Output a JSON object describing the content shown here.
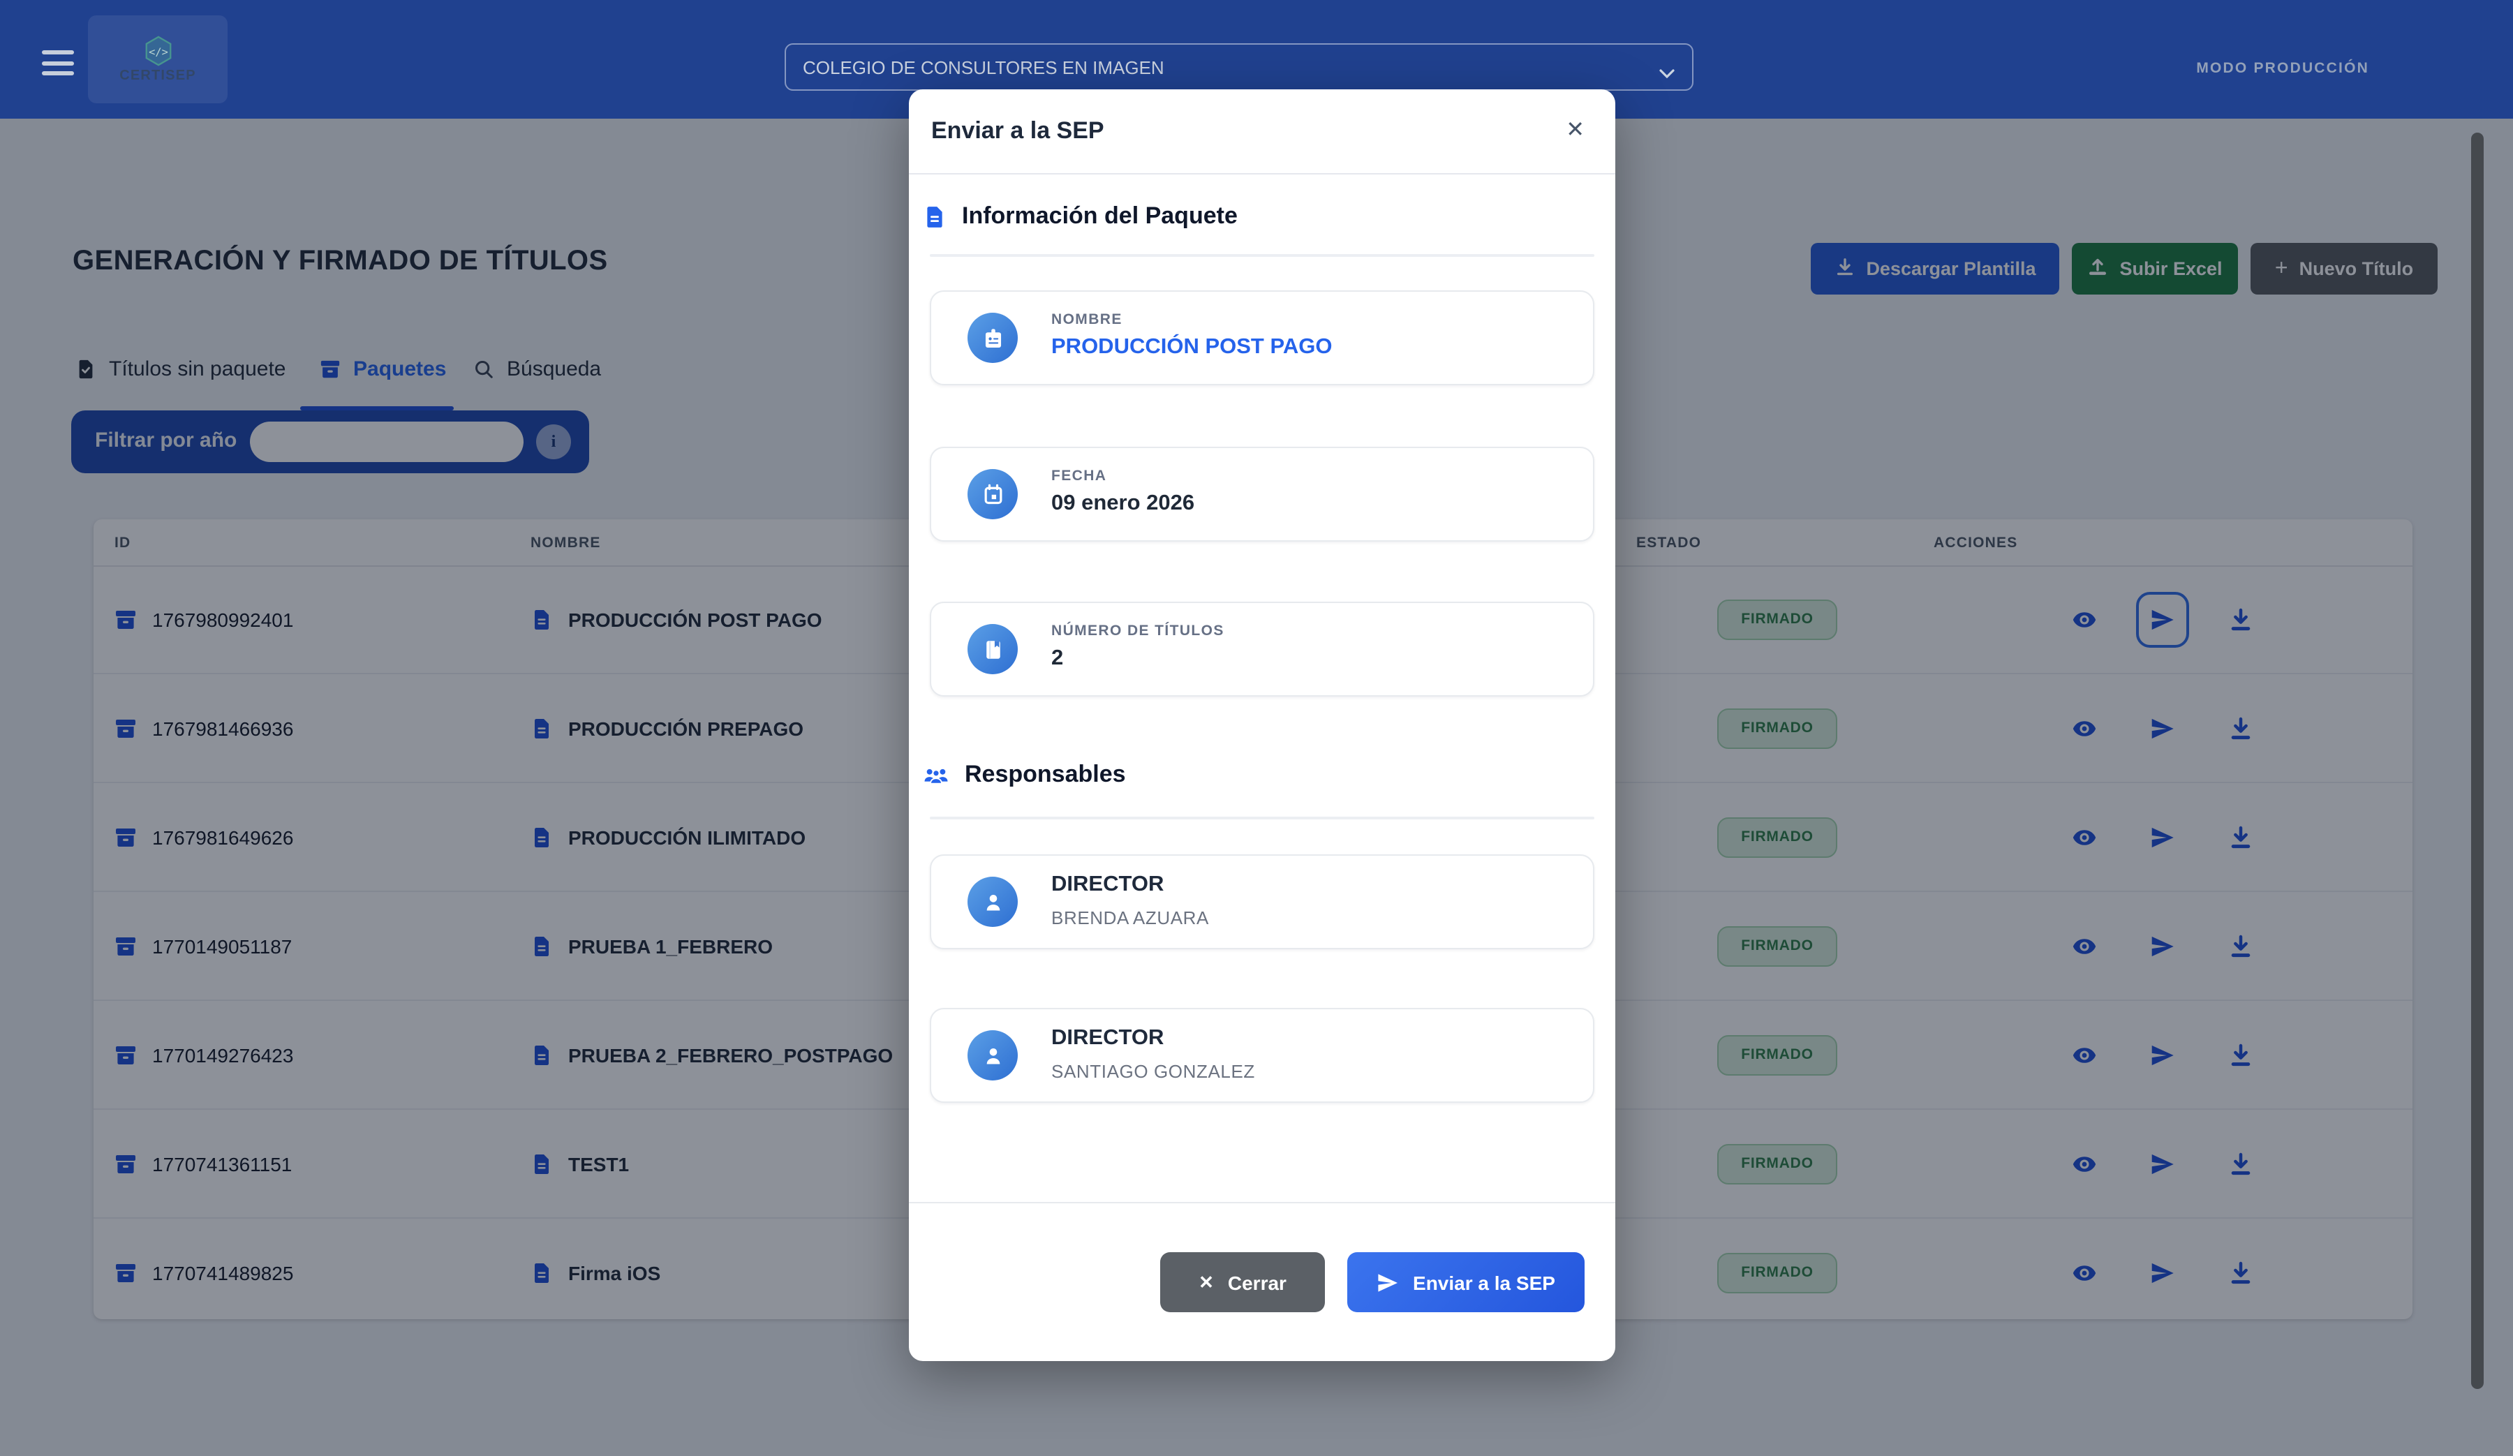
{
  "header": {
    "logo_text": "CERTISEP",
    "org_selector_value": "COLEGIO DE CONSULTORES EN IMAGEN",
    "mode_badge": "MODO PRODUCCIÓN"
  },
  "toolbar": {
    "download_template_label": "Descargar Plantilla",
    "upload_excel_label": "Subir Excel",
    "new_title_label": "Nuevo Título"
  },
  "page": {
    "title": "GENERACIÓN Y FIRMADO DE TÍTULOS",
    "tabs": [
      {
        "label": "Títulos sin paquete",
        "active": false
      },
      {
        "label": "Paquetes",
        "active": true
      },
      {
        "label": "Búsqueda",
        "active": false
      }
    ],
    "filter": {
      "label": "Filtrar por año",
      "input_value": "",
      "input_placeholder": ""
    },
    "table": {
      "headers": {
        "id": "ID",
        "nombre": "NOMBRE",
        "estado": "ESTADO",
        "acciones": "ACCIONES"
      },
      "rows": [
        {
          "id": "1767980992401",
          "name": "PRODUCCIÓN POST PAGO",
          "estado": "FIRMADO"
        },
        {
          "id": "1767981466936",
          "name": "PRODUCCIÓN PREPAGO",
          "estado": "FIRMADO"
        },
        {
          "id": "1767981649626",
          "name": "PRODUCCIÓN ILIMITADO",
          "estado": "FIRMADO"
        },
        {
          "id": "1770149051187",
          "name": "PRUEBA 1_FEBRERO",
          "estado": "FIRMADO"
        },
        {
          "id": "1770149276423",
          "name": "PRUEBA 2_FEBRERO_POSTPAGO",
          "estado": "FIRMADO"
        },
        {
          "id": "1770741361151",
          "name": "TEST1",
          "estado": "FIRMADO"
        },
        {
          "id": "1770741489825",
          "name": "Firma iOS",
          "estado": "FIRMADO"
        }
      ]
    }
  },
  "modal": {
    "title": "Enviar a la SEP",
    "close_glyph": "✕",
    "package_section": {
      "heading": "Información del Paquete",
      "fields": [
        {
          "label": "NOMBRE",
          "value": "PRODUCCIÓN POST PAGO"
        },
        {
          "label": "FECHA",
          "value": "09 enero 2026"
        },
        {
          "label": "NÚMERO DE TÍTULOS",
          "value": "2"
        }
      ]
    },
    "responsables_section": {
      "heading": "Responsables",
      "people": [
        {
          "role": "DIRECTOR",
          "name": "BRENDA AZUARA"
        },
        {
          "role": "DIRECTOR",
          "name": "SANTIAGO GONZALEZ"
        }
      ]
    },
    "footer": {
      "close_label": "Cerrar",
      "submit_label": "Enviar a la SEP"
    }
  },
  "icons": {
    "topbar": [
      "hamburger-icon",
      "code-hexagon-icon",
      "chevron-down-icon"
    ],
    "tabs": [
      "document-check-icon",
      "archive-icon",
      "search-icon"
    ],
    "toolbar": [
      "download-icon",
      "upload-icon",
      "plus-icon"
    ],
    "row_actions": [
      "eye-icon",
      "send-icon",
      "download-icon"
    ],
    "modal": [
      "document-icon",
      "badge-icon",
      "calendar-icon",
      "book-icon",
      "people-icon",
      "person-icon",
      "close-icon",
      "send-icon"
    ]
  },
  "colors": {
    "topbar_blue": "#20418f",
    "accent_blue": "#2563eb",
    "action_icon_blue": "#1d4ed8",
    "filter_blue": "#1e47ae",
    "button_green": "#1c7a3f",
    "button_gray": "#55595e",
    "badge_bg": "#daeedd",
    "badge_border": "#a5d5ae",
    "badge_text": "#2e7d46",
    "overlay": "rgba(13,21,38,0.47)"
  }
}
